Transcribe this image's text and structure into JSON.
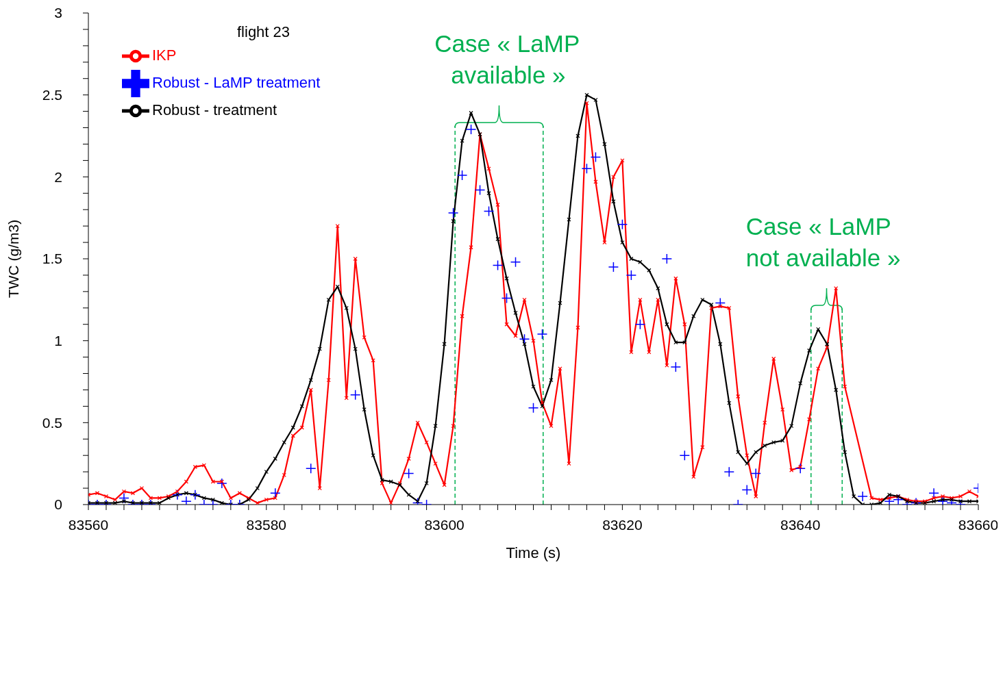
{
  "chart_data": {
    "type": "line",
    "xlabel": "Time (s)",
    "ylabel": "TWC (g/m3)",
    "legend_title": "flight 23",
    "legend": "top left",
    "line_style": "solid",
    "xlim": [
      83560,
      83660
    ],
    "xticks": [
      83560,
      {
        "value": 83562,
        "label": null
      },
      {
        "value": 83564,
        "label": null
      },
      {
        "value": 83566,
        "label": null
      },
      {
        "value": 83568,
        "label": null
      },
      {
        "value": 83570,
        "label": null
      },
      {
        "value": 83572,
        "label": null
      },
      {
        "value": 83574,
        "label": null
      },
      {
        "value": 83576,
        "label": null
      },
      {
        "value": 83578,
        "label": null
      },
      83580,
      {
        "value": 83582,
        "label": null
      },
      {
        "value": 83584,
        "label": null
      },
      {
        "value": 83586,
        "label": null
      },
      {
        "value": 83588,
        "label": null
      },
      {
        "value": 83590,
        "label": null
      },
      {
        "value": 83592,
        "label": null
      },
      {
        "value": 83594,
        "label": null
      },
      {
        "value": 83596,
        "label": null
      },
      {
        "value": 83598,
        "label": null
      },
      83600,
      {
        "value": 83602,
        "label": null
      },
      {
        "value": 83604,
        "label": null
      },
      {
        "value": 83606,
        "label": null
      },
      {
        "value": 83608,
        "label": null
      },
      {
        "value": 83610,
        "label": null
      },
      {
        "value": 83612,
        "label": null
      },
      {
        "value": 83614,
        "label": null
      },
      {
        "value": 83616,
        "label": null
      },
      {
        "value": 83618,
        "label": null
      },
      83620,
      {
        "value": 83622,
        "label": null
      },
      {
        "value": 83624,
        "label": null
      },
      {
        "value": 83626,
        "label": null
      },
      {
        "value": 83628,
        "label": null
      },
      {
        "value": 83630,
        "label": null
      },
      {
        "value": 83632,
        "label": null
      },
      {
        "value": 83634,
        "label": null
      },
      {
        "value": 83636,
        "label": null
      },
      {
        "value": 83638,
        "label": null
      },
      83640,
      {
        "value": 83642,
        "label": null
      },
      {
        "value": 83644,
        "label": null
      },
      {
        "value": 83646,
        "label": null
      },
      {
        "value": 83648,
        "label": null
      },
      {
        "value": 83650,
        "label": null
      },
      {
        "value": 83652,
        "label": null
      },
      {
        "value": 83654,
        "label": null
      },
      {
        "value": 83656,
        "label": null
      },
      {
        "value": 83658,
        "label": null
      },
      83660
    ],
    "ylim": [
      0,
      3
    ],
    "yticks": [
      0,
      {
        "value": 0.1,
        "label": null
      },
      {
        "value": 0.2,
        "label": null
      },
      {
        "value": 0.3,
        "label": null
      },
      {
        "value": 0.4,
        "label": null
      },
      {
        "value": 0.5,
        "label": "0.5"
      },
      {
        "value": 0.6,
        "label": null
      },
      {
        "value": 0.7,
        "label": null
      },
      {
        "value": 0.8,
        "label": null
      },
      {
        "value": 0.9,
        "label": null
      },
      1,
      {
        "value": 1.1,
        "label": null
      },
      {
        "value": 1.2,
        "label": null
      },
      {
        "value": 1.3,
        "label": null
      },
      {
        "value": 1.4,
        "label": null
      },
      {
        "value": 1.5,
        "label": "1.5"
      },
      {
        "value": 1.6,
        "label": null
      },
      {
        "value": 1.7,
        "label": null
      },
      {
        "value": 1.8,
        "label": null
      },
      {
        "value": 1.9,
        "label": null
      },
      2,
      {
        "value": 2.1,
        "label": null
      },
      {
        "value": 2.2,
        "label": null
      },
      {
        "value": 2.3,
        "label": null
      },
      {
        "value": 2.4,
        "label": null
      },
      {
        "value": 2.5,
        "label": "2.5"
      },
      {
        "value": 2.6,
        "label": null
      },
      {
        "value": 2.7,
        "label": null
      },
      {
        "value": 2.8,
        "label": null
      },
      {
        "value": 2.9,
        "label": null
      },
      3
    ],
    "series": [
      {
        "name": "IKP",
        "color": "#ff0000",
        "marker": "cross",
        "x": [
          83560,
          83561,
          83562,
          83563,
          83564,
          83565,
          83566,
          83567,
          83568,
          83569,
          83570,
          83571,
          83572,
          83573,
          83574,
          83575,
          83576,
          83577,
          83578,
          83579,
          83580,
          83581,
          83582,
          83583,
          83584,
          83585,
          83586,
          83587,
          83588,
          83589,
          83590,
          83591,
          83592,
          83593,
          83594,
          83595,
          83596,
          83597,
          83598,
          83599,
          83600,
          83601,
          83602,
          83603,
          83604,
          83605,
          83606,
          83607,
          83608,
          83609,
          83610,
          83611,
          83612,
          83613,
          83614,
          83615,
          83616,
          83617,
          83618,
          83619,
          83620,
          83621,
          83622,
          83623,
          83624,
          83625,
          83626,
          83627,
          83628,
          83629,
          83630,
          83631,
          83632,
          83633,
          83634,
          83635,
          83636,
          83637,
          83638,
          83639,
          83640,
          83641,
          83642,
          83643,
          83644,
          83645,
          83648,
          83649,
          83650,
          83651,
          83652,
          83653,
          83654,
          83655,
          83656,
          83657,
          83658,
          83659,
          83660
        ],
        "values": [
          0.06,
          0.07,
          0.05,
          0.03,
          0.08,
          0.07,
          0.1,
          0.04,
          0.04,
          0.05,
          0.08,
          0.14,
          0.23,
          0.24,
          0.14,
          0.14,
          0.04,
          0.07,
          0.04,
          0.01,
          0.03,
          0.04,
          0.18,
          0.42,
          0.47,
          0.7,
          0.1,
          0.76,
          1.7,
          0.65,
          1.5,
          1.02,
          0.88,
          0.13,
          0.01,
          0.13,
          0.28,
          0.5,
          0.38,
          0.25,
          0.12,
          0.48,
          1.15,
          1.57,
          2.26,
          2.05,
          1.83,
          1.1,
          1.03,
          1.25,
          1.0,
          0.62,
          0.48,
          0.83,
          0.25,
          1.08,
          2.45,
          1.97,
          1.6,
          2.0,
          2.1,
          0.93,
          1.25,
          0.93,
          1.25,
          0.85,
          1.38,
          1.1,
          0.17,
          0.35,
          1.2,
          1.21,
          1.2,
          0.66,
          0.3,
          0.05,
          0.5,
          0.89,
          0.58,
          0.21,
          0.23,
          0.52,
          0.83,
          0.96,
          1.32,
          0.72,
          0.04,
          0.03,
          0.04,
          0.05,
          0.03,
          0.02,
          0.02,
          0.04,
          0.05,
          0.04,
          0.05,
          0.08,
          0.05
        ]
      },
      {
        "name": "Robust - treatment",
        "color": "#000000",
        "marker": "cross",
        "x": [
          83560,
          83561,
          83562,
          83563,
          83564,
          83565,
          83566,
          83567,
          83568,
          83569,
          83570,
          83571,
          83572,
          83573,
          83574,
          83575,
          83576,
          83577,
          83578,
          83579,
          83580,
          83581,
          83582,
          83583,
          83584,
          83585,
          83586,
          83587,
          83588,
          83589,
          83590,
          83591,
          83592,
          83593,
          83594,
          83595,
          83596,
          83597,
          83598,
          83599,
          83600,
          83601,
          83602,
          83603,
          83604,
          83605,
          83606,
          83607,
          83608,
          83609,
          83610,
          83611,
          83612,
          83613,
          83614,
          83615,
          83616,
          83617,
          83618,
          83619,
          83620,
          83621,
          83622,
          83623,
          83624,
          83625,
          83626,
          83627,
          83628,
          83629,
          83630,
          83631,
          83632,
          83633,
          83634,
          83635,
          83636,
          83637,
          83638,
          83639,
          83640,
          83641,
          83642,
          83643,
          83644,
          83645,
          83646,
          83647,
          83648,
          83649,
          83650,
          83651,
          83652,
          83653,
          83654,
          83655,
          83656,
          83657,
          83658,
          83659,
          83660
        ],
        "values": [
          0.01,
          0.01,
          0.01,
          0.01,
          0.02,
          0.01,
          0.01,
          0.01,
          0.01,
          0.04,
          0.06,
          0.07,
          0.06,
          0.04,
          0.03,
          0.01,
          0.0,
          0.0,
          0.03,
          0.1,
          0.2,
          0.28,
          0.38,
          0.47,
          0.6,
          0.76,
          0.95,
          1.25,
          1.33,
          1.2,
          0.95,
          0.58,
          0.3,
          0.15,
          0.14,
          0.12,
          0.06,
          0.02,
          0.13,
          0.48,
          0.98,
          1.73,
          2.22,
          2.39,
          2.26,
          1.9,
          1.62,
          1.38,
          1.17,
          0.98,
          0.72,
          0.6,
          0.76,
          1.23,
          1.74,
          2.25,
          2.5,
          2.47,
          2.2,
          1.85,
          1.6,
          1.5,
          1.48,
          1.43,
          1.32,
          1.1,
          0.99,
          0.99,
          1.15,
          1.25,
          1.22,
          0.98,
          0.62,
          0.32,
          0.25,
          0.32,
          0.36,
          0.38,
          0.39,
          0.48,
          0.74,
          0.94,
          1.07,
          0.98,
          0.7,
          0.32,
          0.05,
          0.0,
          0.0,
          0.01,
          0.06,
          0.05,
          0.02,
          0.01,
          0.01,
          0.02,
          0.03,
          0.03,
          0.02,
          0.02,
          0.02
        ]
      },
      {
        "name": "Robust - LaMP treatment",
        "type": "scatter",
        "color": "#0000ff",
        "marker": "cross",
        "x": [
          83560,
          83561,
          83562,
          83564,
          83565,
          83566,
          83567,
          83570,
          83571,
          83572,
          83573,
          83574,
          83575,
          83576,
          83577,
          83581,
          83585,
          83590,
          83596,
          83597,
          83598,
          83601,
          83602,
          83603,
          83604,
          83605,
          83606,
          83607,
          83608,
          83609,
          83610,
          83611,
          83616,
          83617,
          83619,
          83620,
          83621,
          83622,
          83625,
          83626,
          83627,
          83631,
          83632,
          83633,
          83634,
          83635,
          83640,
          83647,
          83650,
          83651,
          83652,
          83653,
          83655,
          83656,
          83657,
          83658,
          83660
        ],
        "values": [
          0.0,
          0.0,
          0.0,
          0.04,
          0.0,
          0.0,
          0.0,
          0.06,
          0.02,
          0.06,
          0.0,
          0.0,
          0.13,
          0.0,
          0.0,
          0.07,
          0.22,
          0.67,
          0.19,
          0.01,
          0.0,
          1.78,
          2.01,
          2.29,
          1.92,
          1.79,
          1.46,
          1.26,
          1.48,
          1.01,
          0.59,
          1.04,
          2.05,
          2.12,
          1.45,
          1.71,
          1.4,
          1.1,
          1.5,
          0.84,
          0.3,
          1.23,
          0.2,
          0.0,
          0.09,
          0.19,
          0.22,
          0.05,
          0.02,
          0.03,
          0.0,
          0.01,
          0.07,
          0.02,
          0.01,
          0.0,
          0.1
        ]
      }
    ],
    "ref_lines": [
      {
        "axis": "x",
        "value": 83601.2,
        "color": "#00b050",
        "line_style": "dashed"
      },
      {
        "axis": "x",
        "value": 83611.1,
        "color": "#00b050",
        "line_style": "dashed"
      },
      {
        "axis": "x",
        "value": 83641.2,
        "color": "#00b050",
        "line_style": "dashed"
      },
      {
        "axis": "x",
        "value": 83644.7,
        "color": "#00b050",
        "line_style": "dashed"
      }
    ],
    "annotations": [
      "Case « LaMP available »",
      "Case « LaMP not available »"
    ]
  }
}
